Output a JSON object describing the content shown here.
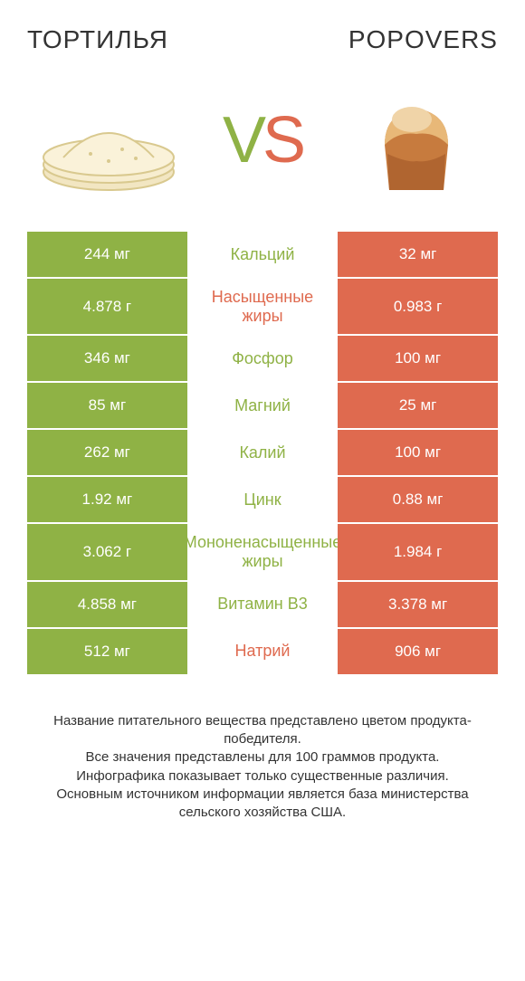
{
  "colors": {
    "left": "#8fb245",
    "right": "#df6a4f",
    "text": "#333333",
    "background": "#ffffff"
  },
  "header": {
    "left_title": "ТОРТИЛЬЯ",
    "right_title": "POPOVERS",
    "vs_v": "V",
    "vs_s": "S"
  },
  "fontsize": {
    "title": 28,
    "vs": 72,
    "cell": 17,
    "label": 18,
    "footer": 15
  },
  "rows": [
    {
      "label": "Кальций",
      "left": "244 мг",
      "right": "32 мг",
      "winner": "left"
    },
    {
      "label": "Насыщенные жиры",
      "left": "4.878 г",
      "right": "0.983 г",
      "winner": "right"
    },
    {
      "label": "Фосфор",
      "left": "346 мг",
      "right": "100 мг",
      "winner": "left"
    },
    {
      "label": "Магний",
      "left": "85 мг",
      "right": "25 мг",
      "winner": "left"
    },
    {
      "label": "Калий",
      "left": "262 мг",
      "right": "100 мг",
      "winner": "left"
    },
    {
      "label": "Цинк",
      "left": "1.92 мг",
      "right": "0.88 мг",
      "winner": "left"
    },
    {
      "label": "Мононенасыщенные жиры",
      "left": "3.062 г",
      "right": "1.984 г",
      "winner": "left"
    },
    {
      "label": "Витамин B3",
      "left": "4.858 мг",
      "right": "3.378 мг",
      "winner": "left"
    },
    {
      "label": "Натрий",
      "left": "512 мг",
      "right": "906 мг",
      "winner": "right"
    }
  ],
  "footer": {
    "line1": "Название питательного вещества представлено цветом продукта-победителя.",
    "line2": "Все значения представлены для 100 граммов продукта.",
    "line3": "Инфографика показывает только существенные различия.",
    "line4": "Основным источником информации является база министерства сельского хозяйства США."
  }
}
